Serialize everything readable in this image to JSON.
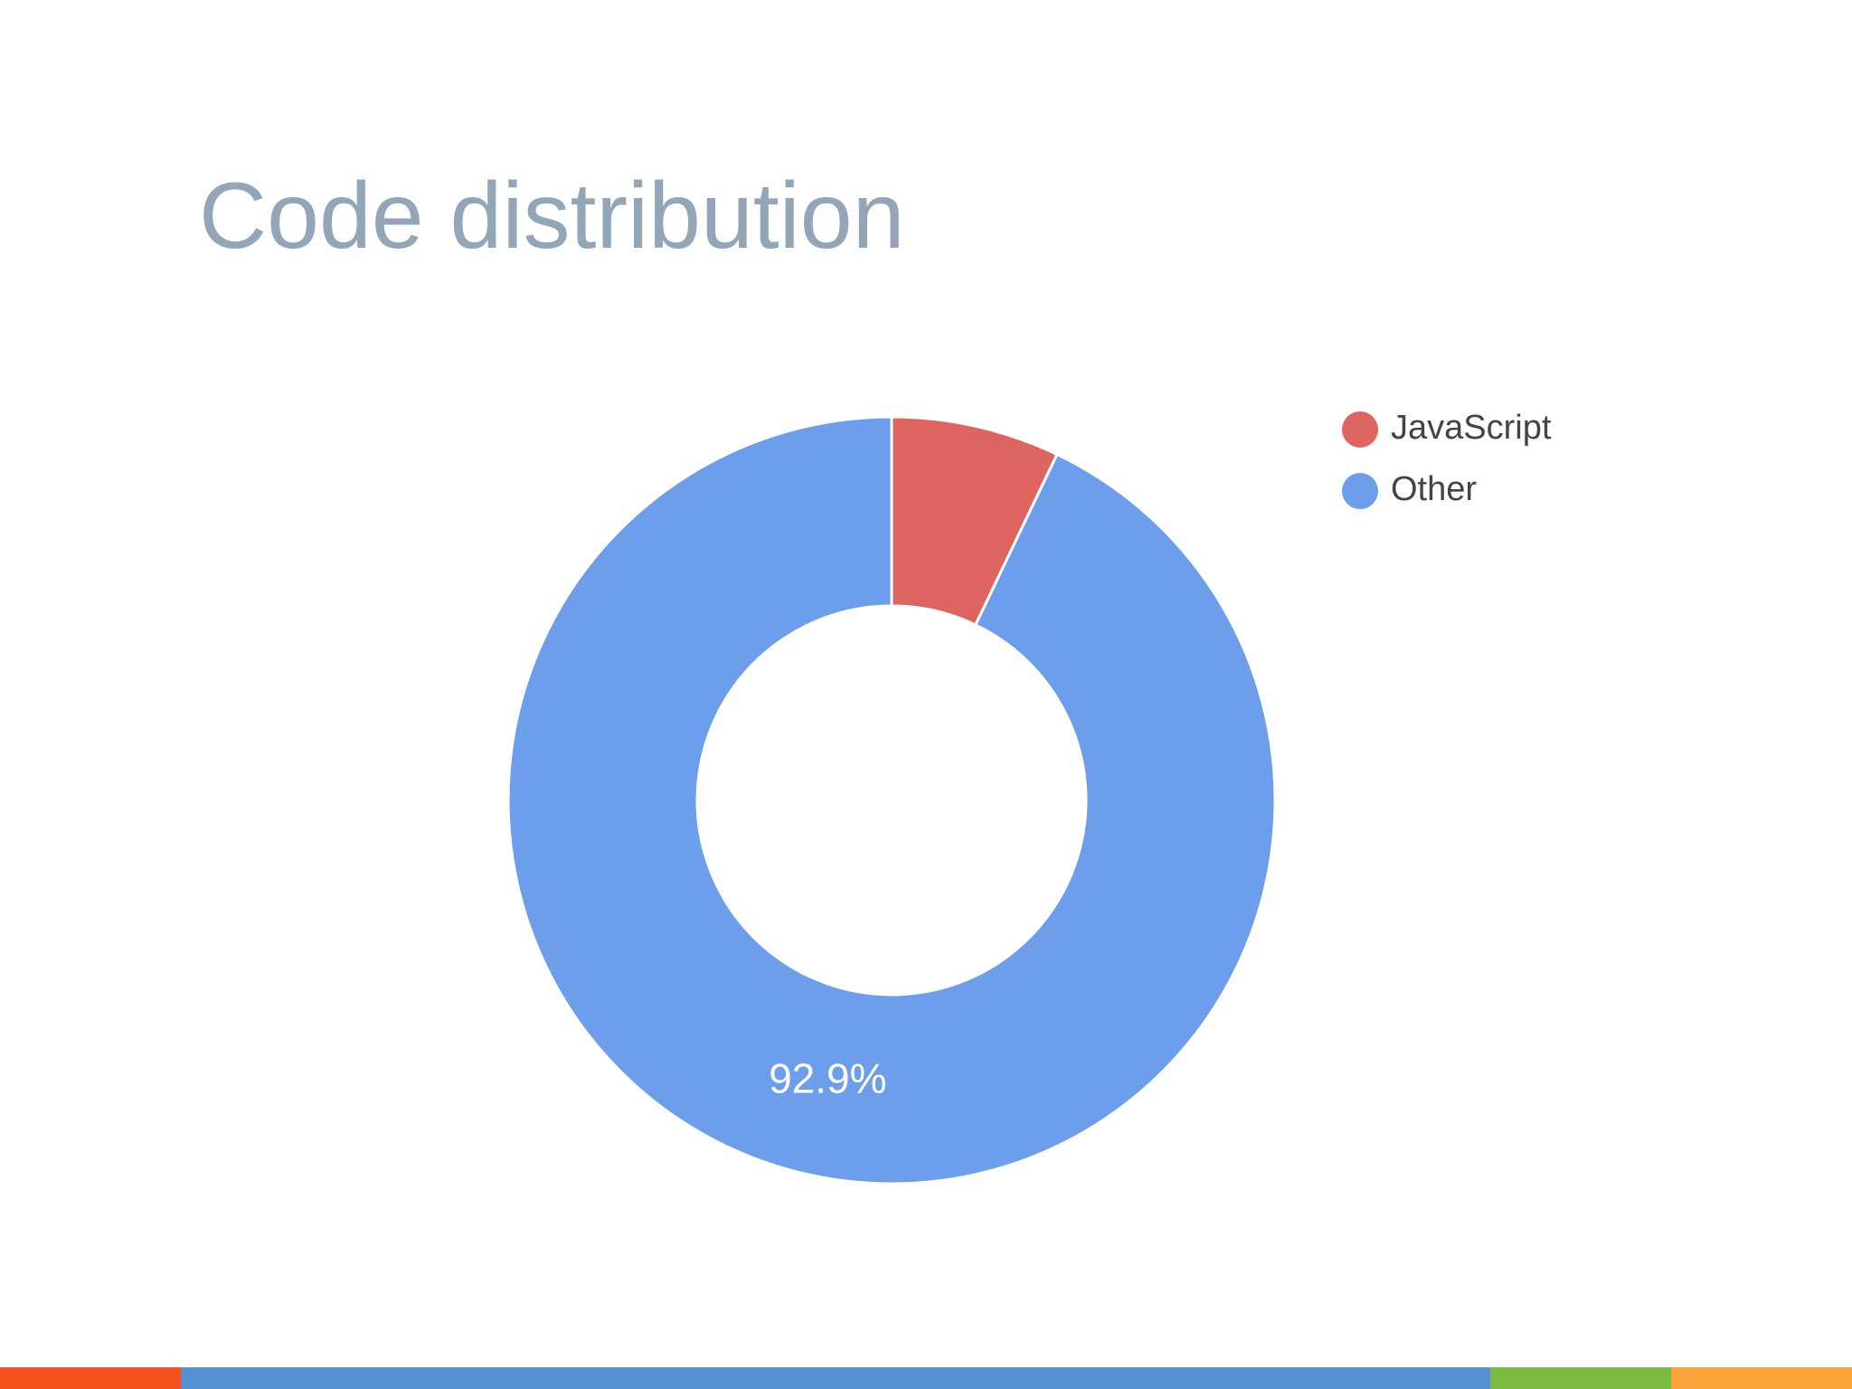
{
  "chart_data": {
    "type": "donut",
    "title": "Code distribution",
    "categories": [
      "JavaScript",
      "Other"
    ],
    "values": [
      7.1,
      92.9
    ],
    "value_labels": [
      null,
      "92.9%"
    ],
    "colors": [
      "#dd6461",
      "#6d9eeb"
    ],
    "legend": "top-right"
  }
}
